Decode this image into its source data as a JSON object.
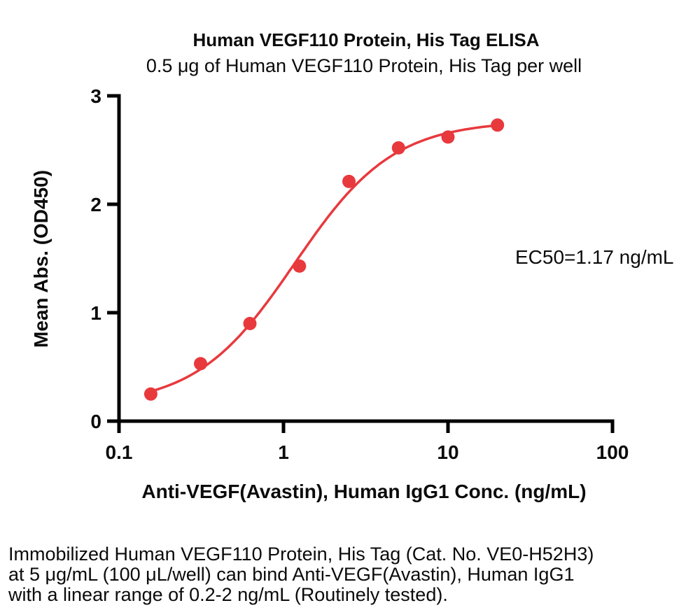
{
  "chart_data": {
    "type": "scatter",
    "title": "Human VEGF110 Protein, His Tag ELISA",
    "subtitle": "0.5 μg of Human VEGF110 Protein, His Tag per well",
    "xlabel": "Anti-VEGF(Avastin), Human IgG1 Conc. (ng/mL)",
    "ylabel": "Mean Abs. (OD450)",
    "xscale": "log",
    "xlim": [
      0.1,
      100
    ],
    "ylim": [
      0,
      3
    ],
    "xticks": [
      "0.1",
      "1",
      "10",
      "100"
    ],
    "yticks": [
      "0",
      "1",
      "2",
      "3"
    ],
    "x": [
      0.156,
      0.313,
      0.625,
      1.25,
      2.5,
      5,
      10,
      20
    ],
    "y": [
      0.25,
      0.53,
      0.9,
      1.43,
      2.21,
      2.52,
      2.62,
      2.73
    ],
    "annotation": "EC50=1.17 ng/mL",
    "fit_curve": {
      "model": "4PL",
      "bottom": 0.14,
      "top": 2.77,
      "ec50": 1.17,
      "hill": 1.45
    },
    "point_color": "#e8393d",
    "curve_color": "#e8393d",
    "axis_color": "#000000",
    "grid": false,
    "legend": "none"
  },
  "caption": {
    "lines": [
      "Immobilized Human VEGF110 Protein, His Tag (Cat. No. VE0-H52H3)",
      "at 5 μg/mL (100 μL/well) can bind Anti-VEGF(Avastin), Human IgG1",
      "with a linear range of 0.2-2 ng/mL (Routinely tested)."
    ]
  }
}
